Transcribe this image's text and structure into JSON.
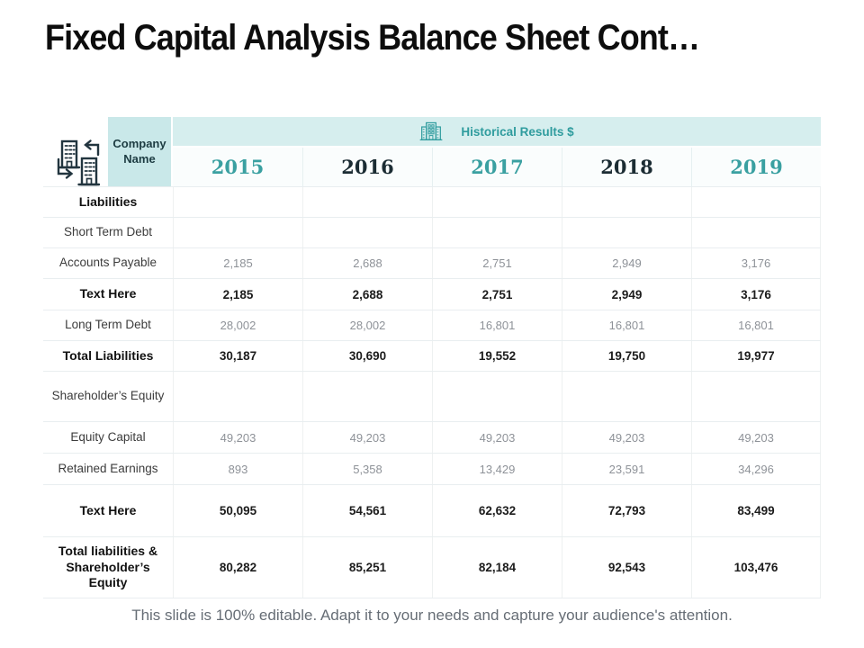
{
  "slide": {
    "title": "Fixed Capital Analysis Balance Sheet Cont…",
    "footer": "This slide is 100% editable. Adapt it to your needs and capture your audience's attention."
  },
  "table": {
    "corner_label": "Company Name",
    "group_header": "Historical Results $",
    "years": [
      "2015",
      "2016",
      "2017",
      "2018",
      "2019"
    ],
    "rows": [
      {
        "label": "Liabilities",
        "bold": true,
        "values": [
          "",
          "",
          "",
          "",
          ""
        ]
      },
      {
        "label": "Short Term Debt",
        "bold": false,
        "values": [
          "",
          "",
          "",
          "",
          ""
        ]
      },
      {
        "label": "Accounts Payable",
        "bold": false,
        "values": [
          "2,185",
          "2,688",
          "2,751",
          "2,949",
          "3,176"
        ]
      },
      {
        "label": "Text Here",
        "bold": true,
        "values": [
          "2,185",
          "2,688",
          "2,751",
          "2,949",
          "3,176"
        ]
      },
      {
        "label": "Long Term Debt",
        "bold": false,
        "values": [
          "28,002",
          "28,002",
          "16,801",
          "16,801",
          "16,801"
        ]
      },
      {
        "label": "Total Liabilities",
        "bold": true,
        "values": [
          "30,187",
          "30,690",
          "19,552",
          "19,750",
          "19,977"
        ]
      },
      {
        "label": "Shareholder’s Equity",
        "bold": false,
        "values": [
          "",
          "",
          "",
          "",
          ""
        ]
      },
      {
        "label": "Equity Capital",
        "bold": false,
        "values": [
          "49,203",
          "49,203",
          "49,203",
          "49,203",
          "49,203"
        ]
      },
      {
        "label": "Retained Earnings",
        "bold": false,
        "values": [
          "893",
          "5,358",
          "13,429",
          "23,591",
          "34,296"
        ]
      },
      {
        "label": "Text Here",
        "bold": true,
        "values": [
          "50,095",
          "54,561",
          "62,632",
          "72,793",
          "83,499"
        ]
      },
      {
        "label": "Total liabilities & Shareholder’s Equity",
        "bold": true,
        "values": [
          "80,282",
          "85,251",
          "82,184",
          "92,543",
          "103,476"
        ]
      }
    ]
  },
  "icons": {
    "corner": "buildings-exchange-icon",
    "band": "office-building-icon"
  },
  "colors": {
    "accent_teal": "#2f9c9e",
    "band_background": "#d6eeee",
    "corner_cell_background": "#c9e8e9",
    "year_dark": "#1b2c33",
    "icon_navy": "#22353f"
  }
}
